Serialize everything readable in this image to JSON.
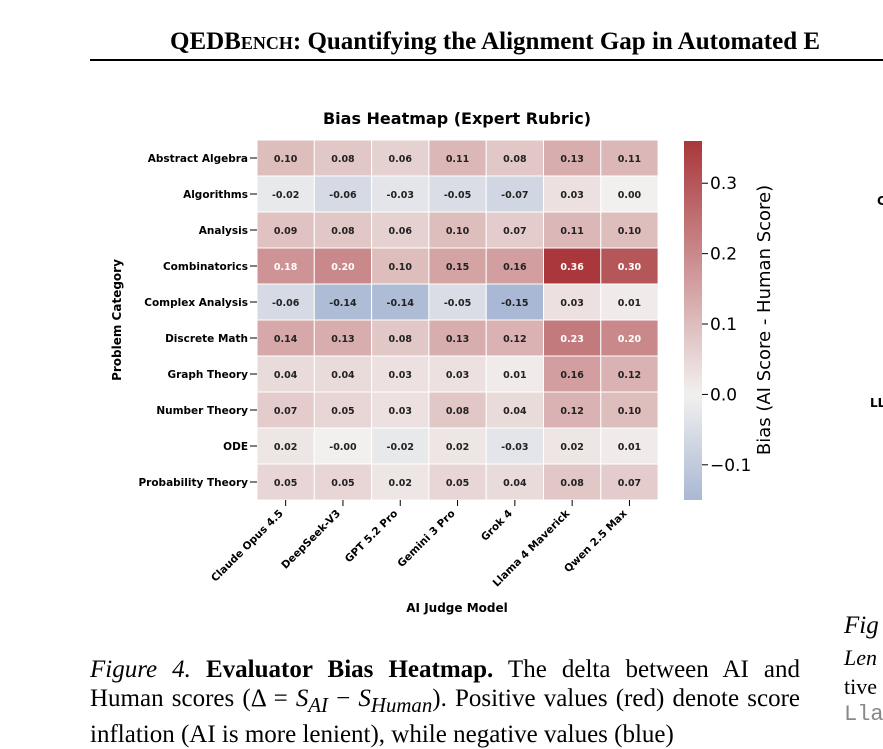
{
  "header": {
    "title_part1": "QEDB",
    "title_smallcaps": "ench",
    "title_part2": ": Quantifying the Alignment Gap in Automated E"
  },
  "chart_data": {
    "type": "heatmap",
    "title": "Bias Heatmap (Expert Rubric)",
    "xlabel": "AI Judge Model",
    "ylabel": "Problem Category",
    "colorbar_label": "Bias (AI Score - Human Score)",
    "colorbar_ticks": [
      "−0.1",
      "0.0",
      "0.1",
      "0.2",
      "0.3"
    ],
    "colorbar_tick_values": [
      -0.1,
      0.0,
      0.1,
      0.2,
      0.3
    ],
    "value_range": [
      -0.15,
      0.36
    ],
    "colormap": "vlag (blue → white → red)",
    "colors": {
      "negative": "#a9b8d4",
      "neutral": "#f2f0ef",
      "positive": "#a9373b"
    },
    "columns": [
      "Claude Opus 4.5",
      "DeepSeek-V3",
      "GPT 5.2 Pro",
      "Gemini 3 Pro",
      "Grok 4",
      "Llama 4 Maverick",
      "Qwen 2.5 Max"
    ],
    "rows": [
      "Abstract Algebra",
      "Algorithms",
      "Analysis",
      "Combinatorics",
      "Complex Analysis",
      "Discrete Math",
      "Graph Theory",
      "Number Theory",
      "ODE",
      "Probability Theory"
    ],
    "values": [
      [
        0.1,
        0.08,
        0.06,
        0.11,
        0.08,
        0.13,
        0.11
      ],
      [
        -0.02,
        -0.06,
        -0.03,
        -0.05,
        -0.07,
        0.03,
        0.0
      ],
      [
        0.09,
        0.08,
        0.06,
        0.1,
        0.07,
        0.11,
        0.1
      ],
      [
        0.18,
        0.2,
        0.1,
        0.15,
        0.16,
        0.36,
        0.3
      ],
      [
        -0.06,
        -0.14,
        -0.14,
        -0.05,
        -0.15,
        0.03,
        0.01
      ],
      [
        0.14,
        0.13,
        0.08,
        0.13,
        0.12,
        0.23,
        0.2
      ],
      [
        0.04,
        0.04,
        0.03,
        0.03,
        0.01,
        0.16,
        0.12
      ],
      [
        0.07,
        0.05,
        0.03,
        0.08,
        0.04,
        0.12,
        0.1
      ],
      [
        0.02,
        -0.0,
        -0.02,
        0.02,
        -0.03,
        0.02,
        0.01
      ],
      [
        0.05,
        0.05,
        0.02,
        0.05,
        0.04,
        0.08,
        0.07
      ]
    ]
  },
  "caption": {
    "label": "Figure 4.",
    "title": "Evaluator Bias Heatmap.",
    "text_before": " The delta between AI and Human scores (Δ = ",
    "formula_s": "S",
    "formula_ai": "AI",
    "formula_minus": " − ",
    "formula_human": "Human",
    "text_after": "). Positive values (red) denote score inflation (AI is more lenient), while negative values (blue)"
  },
  "right_column": {
    "frag_c": "C",
    "frag_ll": "LL",
    "frag_fig": "Fig",
    "frag_len": "Len",
    "frag_tive": "tive",
    "frag_lla": "Lla"
  }
}
